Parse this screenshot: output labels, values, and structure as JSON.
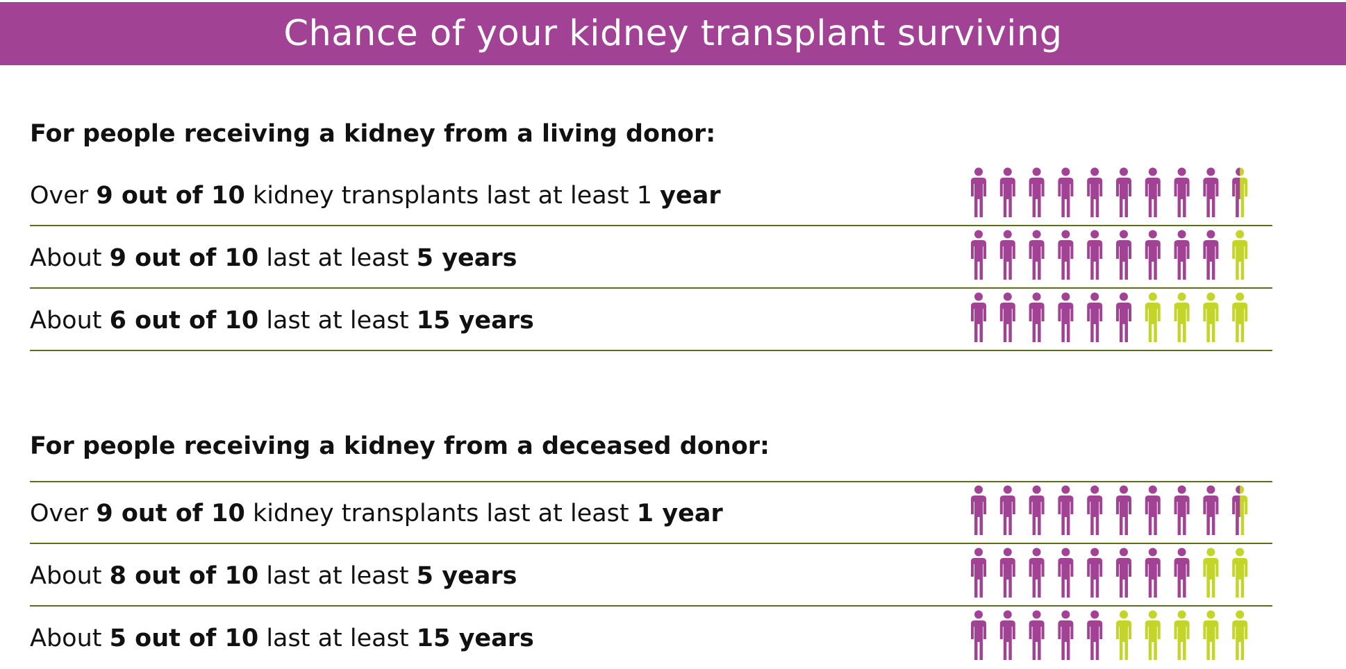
{
  "title": "Chance of your kidney transplant surviving",
  "colors": {
    "header_bg": "#a24295",
    "survived": "#a24295",
    "not_survived": "#c3d529",
    "rule": "#5c6e1b"
  },
  "sections": [
    {
      "heading": "For people receiving a kidney from a living donor:",
      "rows": [
        {
          "prefix": "Over ",
          "ratio": "9 out of 10",
          "middle": " kidney transplants last at least 1 ",
          "period": "year"
        },
        {
          "prefix": "About ",
          "ratio": "9 out of 10",
          "middle": " last at least ",
          "period": "5 years"
        },
        {
          "prefix": "About ",
          "ratio": "6 out of 10",
          "middle": " last at least ",
          "period": "15 years"
        }
      ]
    },
    {
      "heading": "For people receiving a kidney from a deceased donor:",
      "rows": [
        {
          "prefix": "Over ",
          "ratio": "9 out of 10",
          "middle": " kidney transplants last at least ",
          "period": "1 year"
        },
        {
          "prefix": "About ",
          "ratio": "8 out of 10",
          "middle": " last at least ",
          "period": "5 years"
        },
        {
          "prefix": "About ",
          "ratio": "5 out of 10",
          "middle": " last at least ",
          "period": "15 years"
        }
      ]
    }
  ],
  "chart_data": {
    "type": "pictogram",
    "unit": "people out of 10",
    "total": 10,
    "series": [
      {
        "values": [
          9.5,
          9,
          6
        ]
      },
      {
        "values": [
          9.5,
          8,
          5
        ]
      }
    ],
    "categories": [
      "1 year",
      "5 years",
      "15 years"
    ]
  }
}
